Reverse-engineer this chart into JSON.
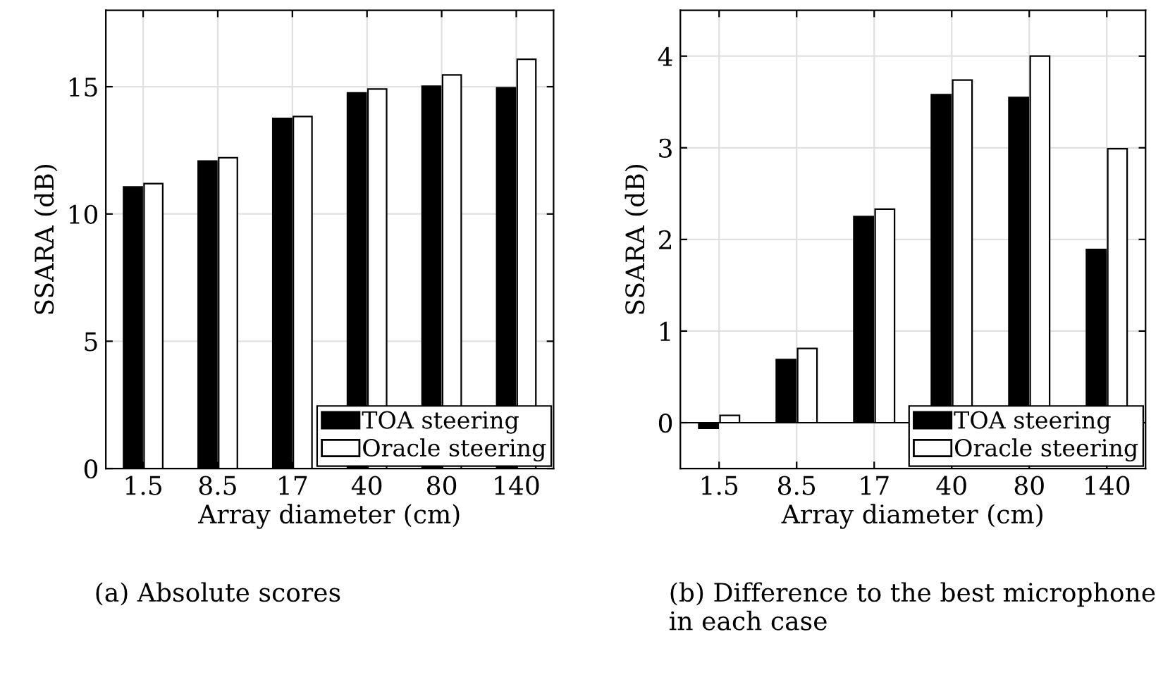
{
  "chart_data": [
    {
      "type": "bar",
      "title": "(a) Absolute scores",
      "xlabel": "Array diameter (cm)",
      "ylabel": "SSARA (dB)",
      "categories": [
        "1.5",
        "8.5",
        "17",
        "40",
        "80",
        "140"
      ],
      "series": [
        {
          "name": "TOA steering",
          "color": "#000000",
          "values": [
            11.06,
            12.08,
            13.75,
            14.76,
            15.02,
            14.96
          ]
        },
        {
          "name": "Oracle steering",
          "color": "#ffffff",
          "values": [
            11.19,
            12.21,
            13.83,
            14.91,
            15.46,
            16.08
          ]
        }
      ],
      "ylim": [
        0,
        18
      ],
      "yticks": [
        0,
        5,
        10,
        15
      ],
      "grid": true,
      "legend": "bottom right"
    },
    {
      "type": "bar",
      "title": "(b) Difference to the best microphone in each case",
      "xlabel": "Array diameter (cm)",
      "ylabel": "SSARA (dB)",
      "categories": [
        "1.5",
        "8.5",
        "17",
        "40",
        "80",
        "140"
      ],
      "series": [
        {
          "name": "TOA steering",
          "color": "#000000",
          "values": [
            -0.06,
            0.69,
            2.25,
            3.58,
            3.55,
            1.89
          ]
        },
        {
          "name": "Oracle steering",
          "color": "#ffffff",
          "values": [
            0.08,
            0.81,
            2.33,
            3.74,
            4.0,
            2.99
          ]
        }
      ],
      "ylim": [
        -0.5,
        4.5
      ],
      "yticks": [
        0,
        1,
        2,
        3,
        4
      ],
      "grid": true,
      "legend": "bottom right"
    }
  ]
}
